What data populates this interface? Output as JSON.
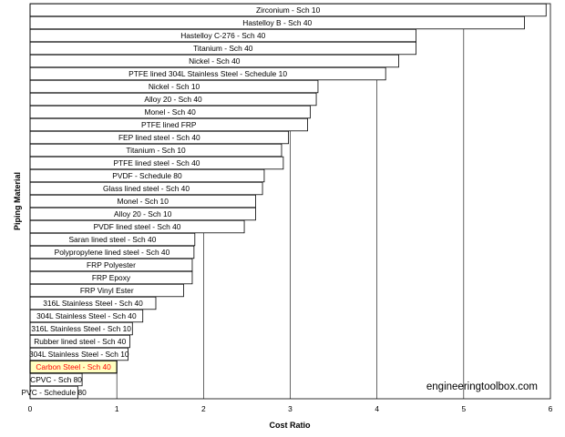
{
  "watermark": "engineeringtoolbox.com",
  "chart_data": {
    "type": "bar",
    "orientation": "horizontal",
    "title": "",
    "xlabel": "Cost Ratio",
    "ylabel": "Piping Material",
    "xlim": [
      0,
      6
    ],
    "xticks": [
      0,
      1,
      2,
      3,
      4,
      5,
      6
    ],
    "grid": "vertical",
    "highlight_color": "#ffffc0",
    "highlight_text_color": "#ff0000",
    "categories": [
      "Zirconium - Sch 10",
      "Hastelloy B - Sch 40",
      "Hastelloy C-276 - Sch 40",
      "Titanium - Sch 40",
      "Nickel - Sch 40",
      "PTFE lined 304L Stainless Steel - Schedule 10",
      "Nickel - Sch 10",
      "Alloy 20 - Sch 40",
      "Monel - Sch 40",
      "PTFE lined FRP",
      "FEP lined steel - Sch 40",
      "Titanium - Sch 10",
      "PTFE lined steel - Sch 40",
      "PVDF - Schedule 80",
      "Glass lined steel - Sch 40",
      "Monel - Sch 10",
      "Alloy 20 - Sch 10",
      "PVDF lined steel - Sch 40",
      "Saran lined steel - Sch 40",
      "Polypropylene lined steel - Sch 40",
      "FRP Polyester",
      "FRP Epoxy",
      "FRP Vinyl Ester",
      "316L Stainless Steel - Sch 40",
      "304L Stainless Steel - Sch 40",
      "316L Stainless Steel - Sch 10",
      "Rubber lined steel - Sch 40",
      "304L Stainless Steel - Sch 10",
      "Carbon Steel - Sch 40",
      "CPVC - Sch 80",
      "PVC - Schedule 80"
    ],
    "values": [
      5.95,
      5.7,
      4.45,
      4.45,
      4.25,
      4.1,
      3.32,
      3.3,
      3.23,
      3.2,
      2.98,
      2.9,
      2.92,
      2.7,
      2.68,
      2.6,
      2.6,
      2.47,
      1.9,
      1.89,
      1.87,
      1.87,
      1.77,
      1.45,
      1.3,
      1.18,
      1.15,
      1.13,
      1.0,
      0.6,
      0.55
    ],
    "highlight_index": 28
  }
}
